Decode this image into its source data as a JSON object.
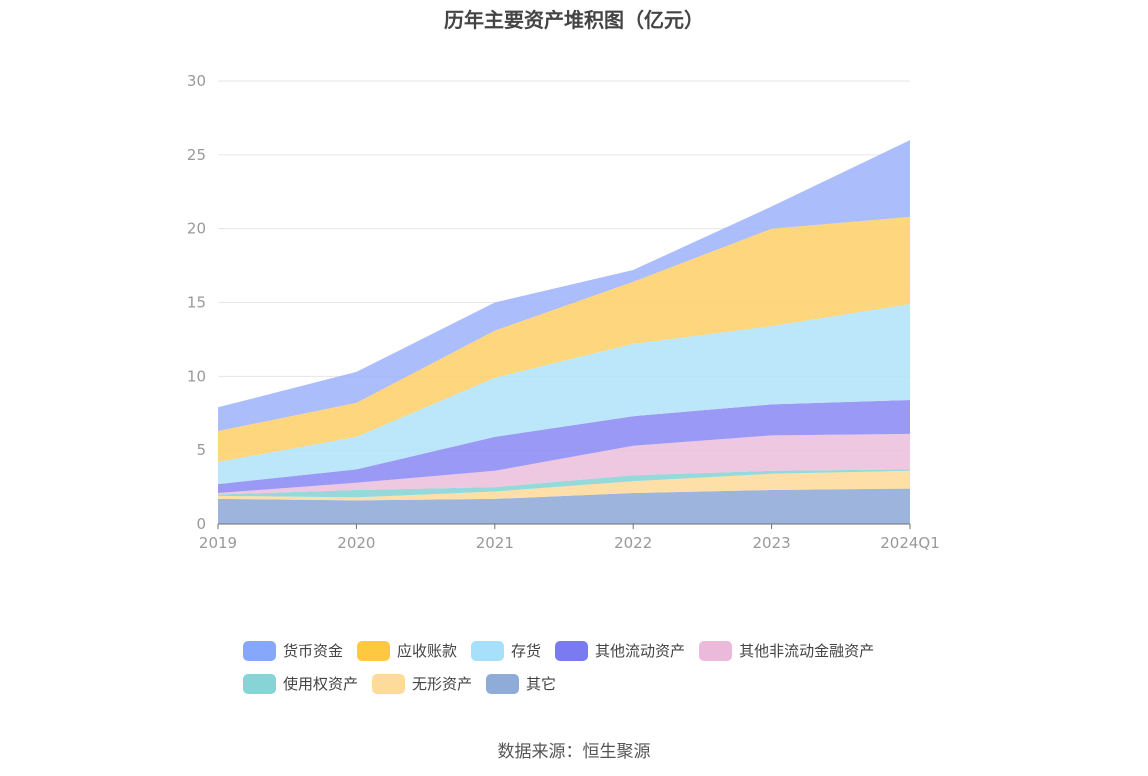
{
  "chart_data": {
    "type": "area",
    "stacked": true,
    "title": "历年主要资产堆积图（亿元）",
    "categories": [
      "2019",
      "2020",
      "2021",
      "2022",
      "2023",
      "2024Q1"
    ],
    "ylim": [
      0,
      30
    ],
    "yticks": [
      "0",
      "5",
      "10",
      "15",
      "20",
      "25",
      "30"
    ],
    "grid": true,
    "legend_position": "bottom",
    "series": [
      {
        "name": "其它",
        "color": "#8fabd8",
        "values": [
          1.7,
          1.6,
          1.7,
          2.1,
          2.3,
          2.4
        ]
      },
      {
        "name": "无形资产",
        "color": "#fedb9b",
        "values": [
          0.2,
          0.2,
          0.5,
          0.8,
          1.1,
          1.2
        ]
      },
      {
        "name": "使用权资产",
        "color": "#86d4d6",
        "values": [
          0.1,
          0.5,
          0.3,
          0.4,
          0.2,
          0.1
        ]
      },
      {
        "name": "其他非流动金融资产",
        "color": "#ecbfdc",
        "values": [
          0.1,
          0.5,
          1.1,
          2.0,
          2.4,
          2.4
        ]
      },
      {
        "name": "其他流动资产",
        "color": "#8c8cf5",
        "values": [
          0.6,
          0.9,
          2.3,
          2.0,
          2.1,
          2.3
        ]
      },
      {
        "name": "存货",
        "color": "#b3e3f8",
        "values": [
          1.5,
          2.2,
          4.0,
          4.9,
          5.3,
          6.5
        ]
      },
      {
        "name": "应收账款",
        "color": "#fdd06c",
        "values": [
          2.1,
          2.3,
          3.2,
          4.2,
          6.6,
          5.9
        ]
      },
      {
        "name": "货币资金",
        "color": "#9fb4fb",
        "values": [
          1.6,
          2.1,
          1.9,
          0.8,
          1.5,
          5.2
        ]
      }
    ]
  },
  "legend": {
    "row1": [
      {
        "name": "货币资金",
        "color": "#87a7fb"
      },
      {
        "name": "应收账款",
        "color": "#fec841"
      },
      {
        "name": "存货",
        "color": "#a7e0fa"
      },
      {
        "name": "其他流动资产",
        "color": "#7b7bf1"
      },
      {
        "name": "其他非流动金融资产",
        "color": "#ebb9da"
      }
    ],
    "row2": [
      {
        "name": "使用权资产",
        "color": "#86d4d6"
      },
      {
        "name": "无形资产",
        "color": "#fedb9b"
      },
      {
        "name": "其它",
        "color": "#8fabd8"
      }
    ]
  },
  "source": "数据来源：恒生聚源"
}
